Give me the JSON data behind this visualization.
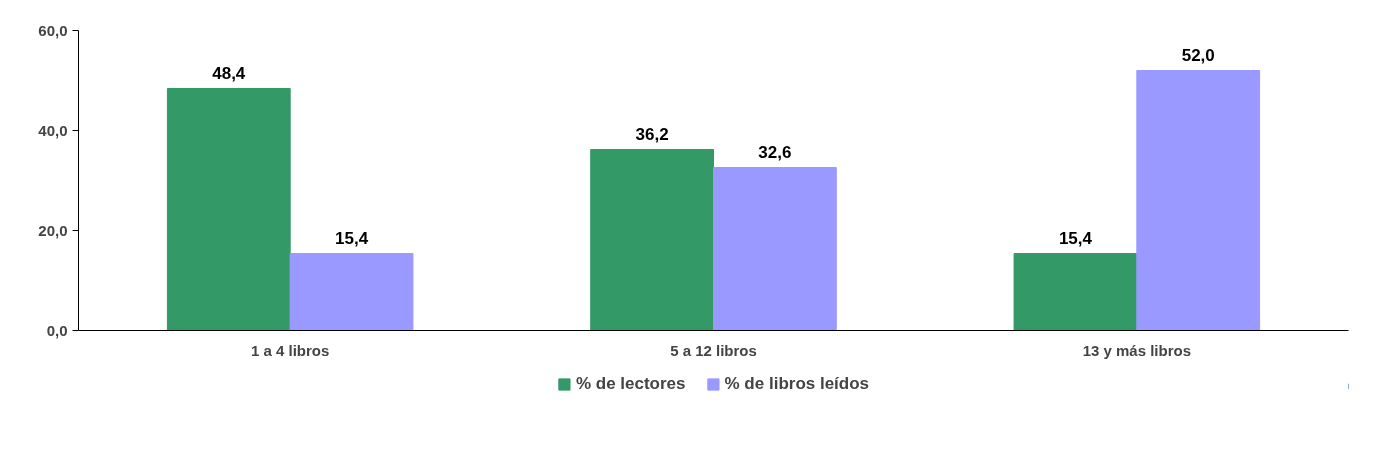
{
  "chart_data": {
    "type": "bar",
    "categories": [
      "1 a 4 libros",
      "5 a 12 libros",
      "13 y más libros"
    ],
    "series": [
      {
        "name": "% de lectores",
        "color": "#339966",
        "values": [
          48.4,
          36.2,
          15.4
        ],
        "value_labels": [
          "48,4",
          "36,2",
          "15,4"
        ]
      },
      {
        "name": "% de libros leídos",
        "color": "#9999ff",
        "values": [
          15.4,
          32.6,
          52.0
        ],
        "value_labels": [
          "15,4",
          "32,6",
          "52,0"
        ]
      }
    ],
    "ylim": [
      0,
      60
    ],
    "yticks": [
      {
        "value": 0,
        "label": "0,0"
      },
      {
        "value": 20,
        "label": "20,0"
      },
      {
        "value": 40,
        "label": "40,0"
      },
      {
        "value": 60,
        "label": "60,0"
      }
    ],
    "grid": false,
    "legend": "bottom"
  }
}
